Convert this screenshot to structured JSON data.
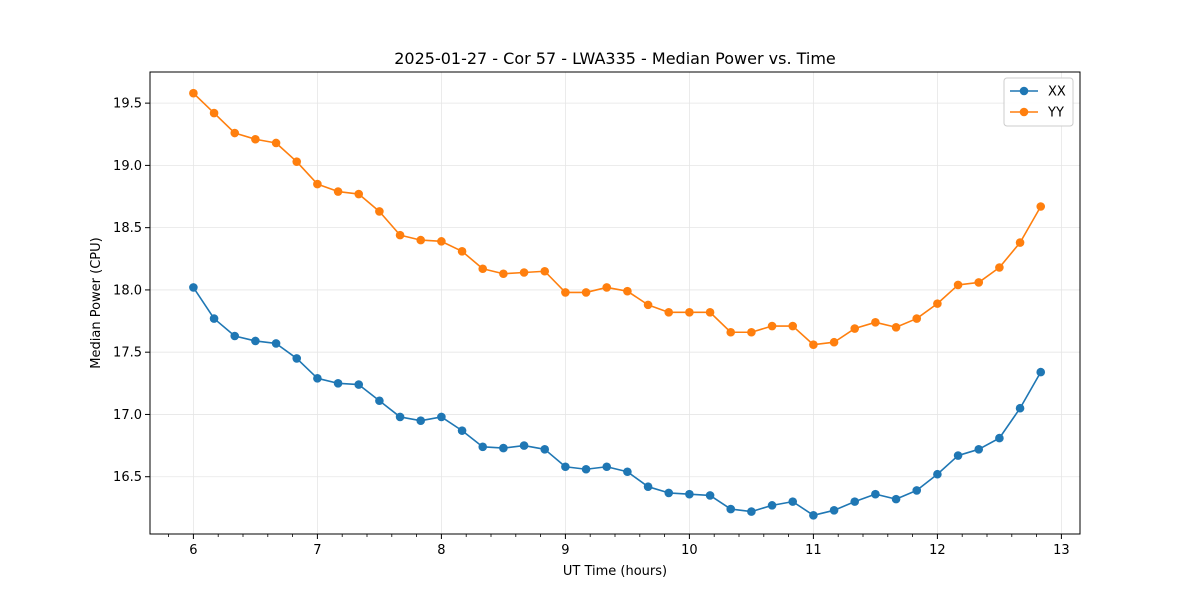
{
  "chart_data": {
    "type": "line",
    "title": "2025-01-27 - Cor 57 - LWA335 - Median Power vs. Time",
    "xlabel": "UT Time (hours)",
    "ylabel": "Median Power (CPU)",
    "xlim": [
      5.65,
      13.15
    ],
    "ylim": [
      16.04,
      19.75
    ],
    "xticks": [
      6,
      7,
      8,
      9,
      10,
      11,
      12,
      13
    ],
    "xtick_labels": [
      "6",
      "7",
      "8",
      "9",
      "10",
      "11",
      "12",
      "13"
    ],
    "yticks": [
      16.5,
      17.0,
      17.5,
      18.0,
      18.5,
      19.0,
      19.5
    ],
    "ytick_labels": [
      "16.5",
      "17.0",
      "17.5",
      "18.0",
      "18.5",
      "19.0",
      "19.5"
    ],
    "grid": true,
    "legend_position": "top-right",
    "x": [
      6.0,
      6.1667,
      6.3333,
      6.5,
      6.6667,
      6.8333,
      7.0,
      7.1667,
      7.3333,
      7.5,
      7.6667,
      7.8333,
      8.0,
      8.1667,
      8.3333,
      8.5,
      8.6667,
      8.8333,
      9.0,
      9.1667,
      9.3333,
      9.5,
      9.6667,
      9.8333,
      10.0,
      10.1667,
      10.3333,
      10.5,
      10.6667,
      10.8333,
      11.0,
      11.1667,
      11.3333,
      11.5,
      11.6667,
      11.8333,
      12.0,
      12.1667,
      12.3333,
      12.5,
      12.6667,
      12.8333
    ],
    "series": [
      {
        "name": "XX",
        "color": "#1f77b4",
        "values": [
          18.02,
          17.77,
          17.63,
          17.59,
          17.57,
          17.45,
          17.29,
          17.25,
          17.24,
          17.11,
          16.98,
          16.95,
          16.98,
          16.87,
          16.74,
          16.73,
          16.75,
          16.72,
          16.58,
          16.56,
          16.58,
          16.54,
          16.42,
          16.37,
          16.36,
          16.35,
          16.24,
          16.22,
          16.27,
          16.3,
          16.19,
          16.23,
          16.3,
          16.36,
          16.32,
          16.39,
          16.52,
          16.67,
          16.72,
          16.81,
          17.05,
          17.34
        ]
      },
      {
        "name": "YY",
        "color": "#ff7f0e",
        "values": [
          19.58,
          19.42,
          19.26,
          19.21,
          19.18,
          19.03,
          18.85,
          18.79,
          18.77,
          18.63,
          18.44,
          18.4,
          18.39,
          18.31,
          18.17,
          18.13,
          18.14,
          18.15,
          17.98,
          17.98,
          18.02,
          17.99,
          17.88,
          17.82,
          17.82,
          17.82,
          17.66,
          17.66,
          17.71,
          17.71,
          17.56,
          17.58,
          17.69,
          17.74,
          17.7,
          17.77,
          17.89,
          18.04,
          18.06,
          18.18,
          18.38,
          18.67
        ]
      }
    ]
  }
}
